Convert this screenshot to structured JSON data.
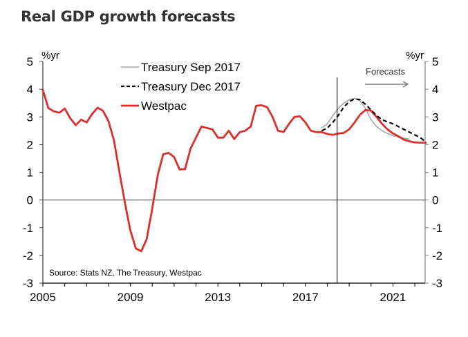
{
  "title": "Real GDP growth forecasts",
  "chart_data": {
    "type": "line",
    "title": "Real GDP growth forecasts",
    "ylabel_left": "%yr",
    "ylabel_right": "%yr",
    "xlabel": "",
    "ylim": [
      -3,
      5
    ],
    "xlim": [
      2005,
      2022.75
    ],
    "yticks": [
      5,
      4,
      3,
      2,
      1,
      0,
      -1,
      -2,
      -3
    ],
    "ytick_labels": [
      "5",
      "4",
      "3",
      "2",
      "1",
      "0",
      "-1",
      "-2",
      "-3"
    ],
    "xticks": [
      2005,
      2009,
      2013,
      2017,
      2021
    ],
    "xtick_labels": [
      "2005",
      "2009",
      "2013",
      "2017",
      "2021"
    ],
    "grid": false,
    "zero_line": true,
    "legend": {
      "placement": "top-left",
      "entries": [
        {
          "label": "Treasury Sep 2017",
          "style": "solid",
          "color": "#a6a6a6"
        },
        {
          "label": "Treasury Dec 2017",
          "style": "dashed",
          "color": "#000000"
        },
        {
          "label": "Westpac",
          "style": "solid",
          "color": "#d9302c"
        }
      ]
    },
    "annotations": {
      "forecast_divider_x": 2018.45,
      "forecasts_label": "Forecasts",
      "source": "Source: Stats NZ, The Treasury,  Westpac"
    },
    "series": [
      {
        "name": "Westpac",
        "color": "#d9302c",
        "x": [
          2005.0,
          2005.25,
          2005.5,
          2005.75,
          2006.0,
          2006.25,
          2006.5,
          2006.75,
          2007.0,
          2007.25,
          2007.5,
          2007.75,
          2008.0,
          2008.25,
          2008.5,
          2008.75,
          2009.0,
          2009.25,
          2009.5,
          2009.75,
          2010.0,
          2010.25,
          2010.5,
          2010.75,
          2011.0,
          2011.25,
          2011.5,
          2011.75,
          2012.0,
          2012.25,
          2012.5,
          2012.75,
          2013.0,
          2013.25,
          2013.5,
          2013.75,
          2014.0,
          2014.25,
          2014.5,
          2014.75,
          2015.0,
          2015.25,
          2015.5,
          2015.75,
          2016.0,
          2016.25,
          2016.5,
          2016.75,
          2017.0,
          2017.25,
          2017.5,
          2017.75,
          2018.0,
          2018.25,
          2018.5,
          2018.75,
          2019.0,
          2019.25,
          2019.5,
          2019.75,
          2020.0,
          2020.25,
          2020.5,
          2020.75,
          2021.0,
          2021.25,
          2021.5,
          2021.75,
          2022.0,
          2022.25,
          2022.5
        ],
        "values": [
          3.97,
          3.32,
          3.2,
          3.15,
          3.3,
          2.95,
          2.7,
          2.9,
          2.8,
          3.1,
          3.33,
          3.22,
          2.85,
          2.15,
          1.0,
          -0.1,
          -1.1,
          -1.75,
          -1.85,
          -1.4,
          -0.3,
          0.9,
          1.65,
          1.7,
          1.55,
          1.1,
          1.12,
          1.85,
          2.25,
          2.65,
          2.6,
          2.55,
          2.25,
          2.25,
          2.5,
          2.2,
          2.45,
          2.5,
          2.65,
          3.4,
          3.42,
          3.35,
          3.0,
          2.5,
          2.45,
          2.75,
          3.0,
          3.02,
          2.8,
          2.5,
          2.45,
          2.45,
          2.38,
          2.35,
          2.4,
          2.42,
          2.55,
          2.8,
          3.08,
          3.25,
          3.22,
          3.0,
          2.75,
          2.55,
          2.4,
          2.3,
          2.18,
          2.12,
          2.08,
          2.07,
          2.07
        ]
      },
      {
        "name": "Treasury Sep 2017",
        "color": "#a6a6a6",
        "x": [
          2017.75,
          2018.0,
          2018.25,
          2018.5,
          2018.75,
          2019.0,
          2019.25,
          2019.5,
          2019.75,
          2020.0,
          2020.25,
          2020.5,
          2020.75,
          2021.0,
          2021.25,
          2021.5,
          2021.75
        ],
        "values": [
          2.6,
          2.75,
          3.05,
          3.3,
          3.5,
          3.62,
          3.67,
          3.58,
          3.3,
          2.9,
          2.65,
          2.5,
          2.4,
          2.32,
          2.27,
          2.23,
          2.2
        ]
      },
      {
        "name": "Treasury Dec 2017",
        "color": "#000000",
        "x": [
          2017.75,
          2018.0,
          2018.25,
          2018.5,
          2018.75,
          2019.0,
          2019.25,
          2019.5,
          2019.75,
          2020.0,
          2020.25,
          2020.5,
          2020.75,
          2021.0,
          2021.25,
          2021.5,
          2021.75,
          2022.0,
          2022.25,
          2022.5
        ],
        "values": [
          2.5,
          2.6,
          2.8,
          3.05,
          3.35,
          3.55,
          3.65,
          3.62,
          3.45,
          3.25,
          3.05,
          2.9,
          2.82,
          2.75,
          2.65,
          2.55,
          2.45,
          2.35,
          2.25,
          2.1
        ]
      }
    ]
  }
}
